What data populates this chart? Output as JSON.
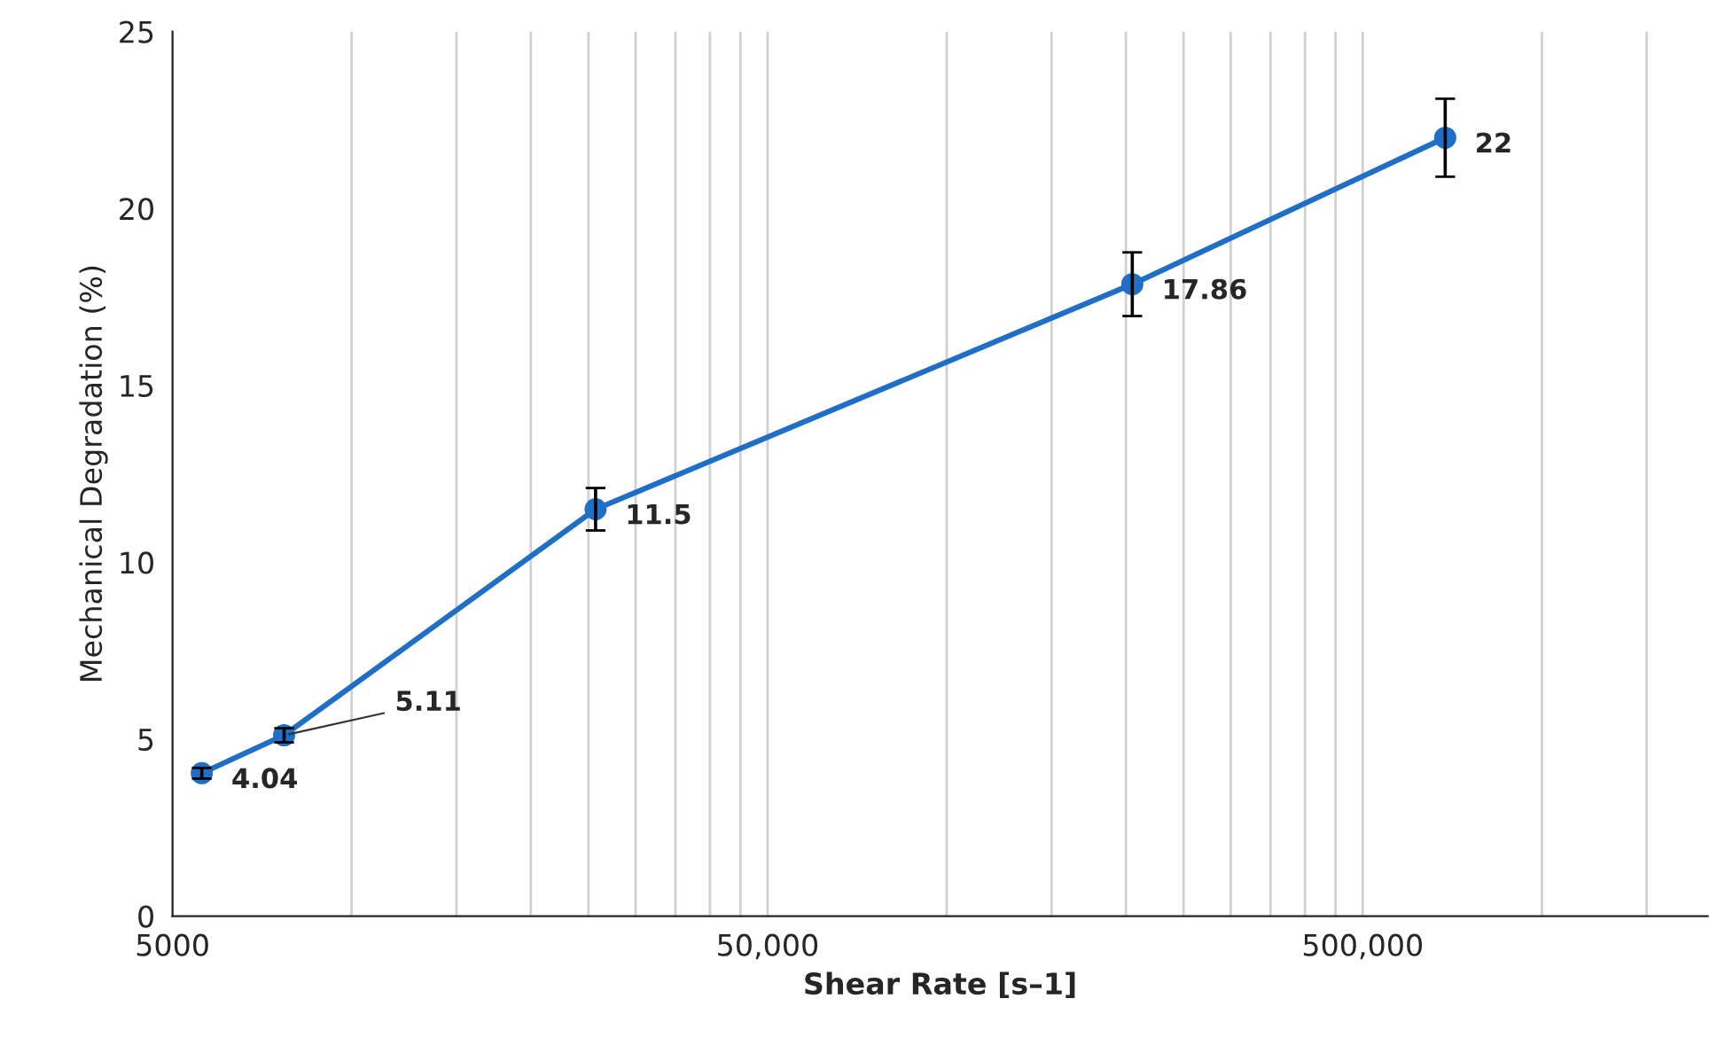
{
  "chart_data": {
    "type": "line",
    "xlabel": "Shear Rate [s–1]",
    "ylabel": "Mechanical Degradation (%)",
    "x": [
      5600,
      7700,
      25700,
      205000,
      688000
    ],
    "series": [
      {
        "color": "#1f6fc6",
        "values": [
          4.04,
          5.11,
          11.5,
          17.86,
          22
        ],
        "errors": [
          0.15,
          0.2,
          0.6,
          0.9,
          1.1
        ],
        "value_labels": [
          "4.04",
          null,
          "11.5",
          "17.86",
          "22"
        ]
      }
    ],
    "annotations": [
      {
        "text": "5.11",
        "x": 7700,
        "y": 5.11
      }
    ],
    "marker": "circle",
    "line_style": "solid",
    "log": "x",
    "grid": "x",
    "xlim": [
      5000,
      1900000
    ],
    "xticks": [
      {
        "value": 5000,
        "label": "5000"
      },
      {
        "value": 10000,
        "label": null
      },
      {
        "value": 15000,
        "label": null
      },
      {
        "value": 20000,
        "label": null
      },
      {
        "value": 25000,
        "label": null
      },
      {
        "value": 30000,
        "label": null
      },
      {
        "value": 35000,
        "label": null
      },
      {
        "value": 40000,
        "label": null
      },
      {
        "value": 45000,
        "label": null
      },
      {
        "value": 50000,
        "label": "50,000"
      },
      {
        "value": 100000,
        "label": null
      },
      {
        "value": 150000,
        "label": null
      },
      {
        "value": 200000,
        "label": null
      },
      {
        "value": 250000,
        "label": null
      },
      {
        "value": 300000,
        "label": null
      },
      {
        "value": 350000,
        "label": null
      },
      {
        "value": 400000,
        "label": null
      },
      {
        "value": 450000,
        "label": null
      },
      {
        "value": 500000,
        "label": "500,000"
      },
      {
        "value": 1000000,
        "label": null
      },
      {
        "value": 1500000,
        "label": null
      }
    ],
    "ylim": [
      0,
      25
    ],
    "yticks": [
      0,
      5,
      10,
      15,
      20,
      25
    ]
  }
}
